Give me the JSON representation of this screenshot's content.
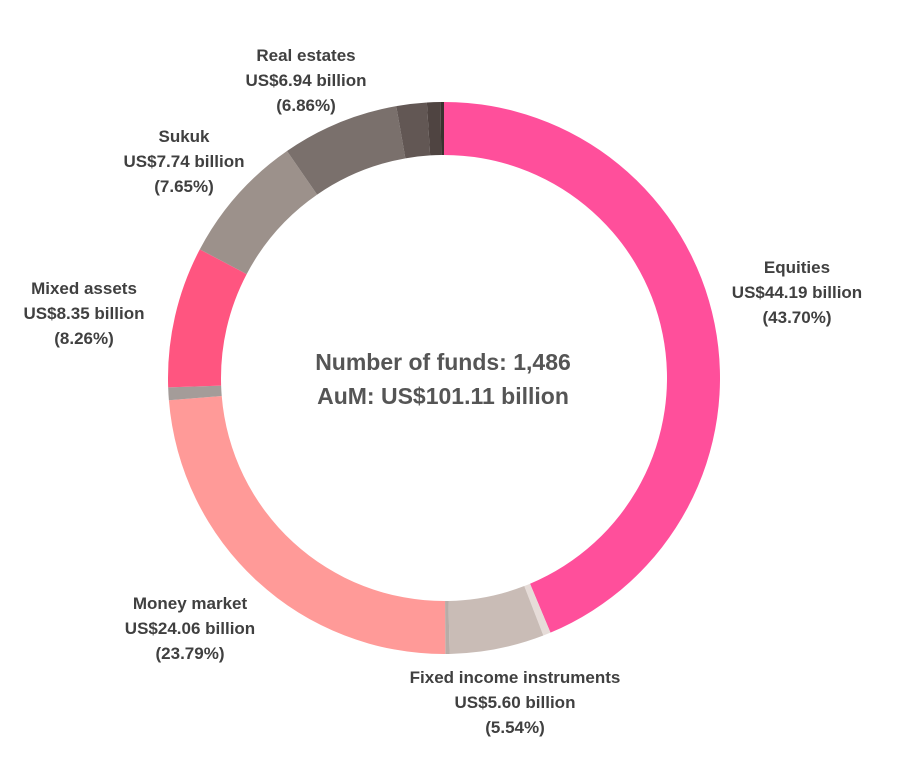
{
  "chart_data": {
    "type": "pie",
    "donut": true,
    "center_text": {
      "funds": "Number of funds: 1,486",
      "aum": "AuM: US$101.11 billion"
    },
    "slices": [
      {
        "key": "equities",
        "name": "Equities",
        "value": 44.19,
        "value_text": "US$44.19 billion",
        "percent": 43.7,
        "percent_text": "(43.70%)",
        "color": "#ff4f9b"
      },
      {
        "key": "other-light-1",
        "value": 0.45,
        "color": "#e6dcd8"
      },
      {
        "key": "fixed-income",
        "name": "Fixed income instruments",
        "value": 5.6,
        "value_text": "US$5.60 billion",
        "percent": 5.54,
        "percent_text": "(5.54%)",
        "color": "#c9bcb6"
      },
      {
        "key": "other-light-2",
        "value": 0.25,
        "color": "#b8aca7"
      },
      {
        "key": "money-market",
        "name": "Money market",
        "value": 24.06,
        "value_text": "US$24.06 billion",
        "percent": 23.79,
        "percent_text": "(23.79%)",
        "color": "#ff9a98"
      },
      {
        "key": "other-grey",
        "value": 0.75,
        "color": "#a49c99"
      },
      {
        "key": "mixed-assets",
        "name": "Mixed assets",
        "value": 8.35,
        "value_text": "US$8.35 billion",
        "percent": 8.26,
        "percent_text": "(8.26%)",
        "color": "#ff5580"
      },
      {
        "key": "sukuk",
        "name": "Sukuk",
        "value": 7.74,
        "value_text": "US$7.74 billion",
        "percent": 7.65,
        "percent_text": "(7.65%)",
        "color": "#9c918b"
      },
      {
        "key": "real-estates",
        "name": "Real estates",
        "value": 6.94,
        "value_text": "US$6.94 billion",
        "percent": 6.86,
        "percent_text": "(6.86%)",
        "color": "#7a706c"
      },
      {
        "key": "other-dark-1",
        "value": 1.8,
        "color": "#625754"
      },
      {
        "key": "other-dark-2",
        "value": 0.8,
        "color": "#4f4441"
      },
      {
        "key": "other-dark-3",
        "value": 0.2,
        "color": "#3a312f"
      }
    ]
  }
}
